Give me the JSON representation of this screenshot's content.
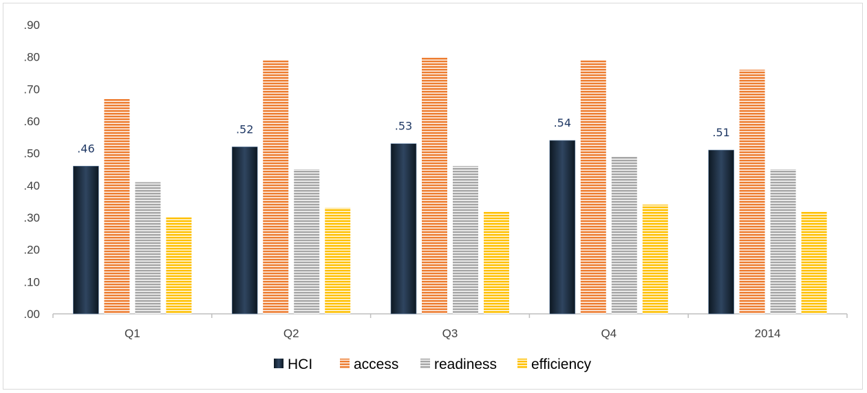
{
  "chart_data": {
    "type": "bar",
    "categories": [
      "Q1",
      "Q2",
      "Q3",
      "Q4",
      "2014"
    ],
    "series": [
      {
        "name": "HCI",
        "values": [
          0.46,
          0.52,
          0.53,
          0.54,
          0.51
        ],
        "color": "#1f2d3d",
        "pattern": "gradient-dark"
      },
      {
        "name": "access",
        "values": [
          0.67,
          0.79,
          0.8,
          0.79,
          0.76
        ],
        "color": "#ed7d31",
        "pattern": "horizontal-stripes"
      },
      {
        "name": "readiness",
        "values": [
          0.41,
          0.45,
          0.46,
          0.49,
          0.45
        ],
        "color": "#a6a6a6",
        "pattern": "horizontal-stripes"
      },
      {
        "name": "efficiency",
        "values": [
          0.3,
          0.33,
          0.32,
          0.34,
          0.32
        ],
        "color": "#ffc000",
        "pattern": "horizontal-stripes"
      }
    ],
    "data_labels": {
      "series": "HCI",
      "labels": [
        ".46",
        ".52",
        ".53",
        ".54",
        ".51"
      ]
    },
    "y_ticks": [
      ".00",
      ".10",
      ".20",
      ".30",
      ".40",
      ".50",
      ".60",
      ".70",
      ".80",
      ".90"
    ],
    "ylim": [
      0,
      0.9
    ],
    "grid": false,
    "legend": "bottom-center",
    "title": "",
    "xlabel": "",
    "ylabel": ""
  }
}
